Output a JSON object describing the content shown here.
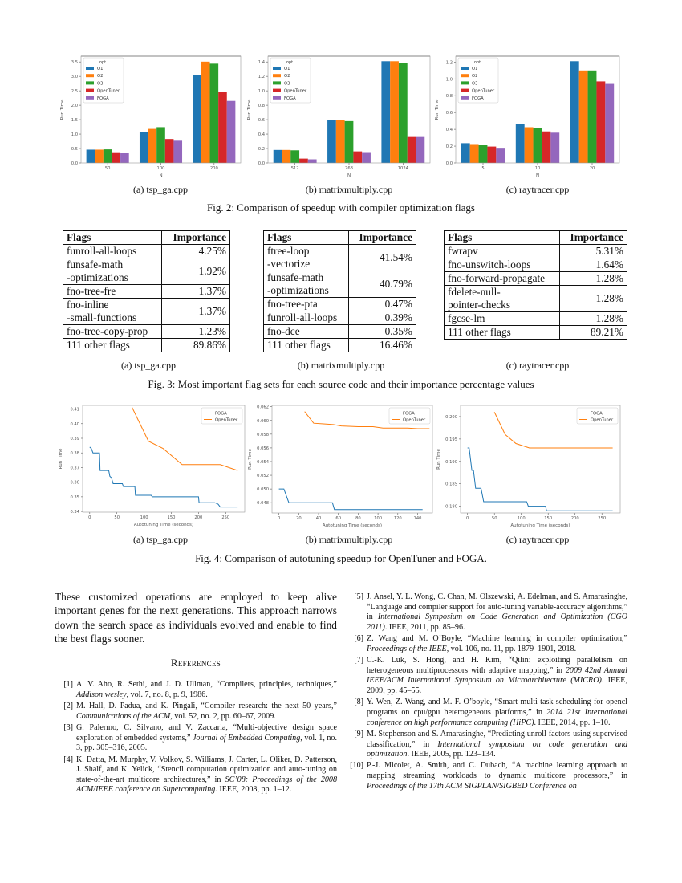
{
  "fig2": {
    "subcaptions": [
      "(a) tsp_ga.cpp",
      "(b) matrixmultiply.cpp",
      "(c) raytracer.cpp"
    ],
    "caption": "Fig. 2: Comparison of speedup with compiler optimization flags"
  },
  "fig3": {
    "subcaptions": [
      "(a) tsp_ga.cpp",
      "(b) matrixmultiply.cpp",
      "(c) raytracer.cpp"
    ],
    "caption": "Fig. 3: Most important flag sets for each source code and their importance percentage values",
    "tables": [
      {
        "headers": [
          "Flags",
          "Importance"
        ],
        "rows": [
          [
            "funroll-all-loops",
            "4.25%"
          ],
          [
            "funsafe-math\n-optimizations",
            "1.92%"
          ],
          [
            "fno-tree-fre",
            "1.37%"
          ],
          [
            "fno-inline\n-small-functions",
            "1.37%"
          ],
          [
            "fno-tree-copy-prop",
            "1.23%"
          ],
          [
            "111 other flags",
            "89.86%"
          ]
        ]
      },
      {
        "headers": [
          "Flags",
          "Importance"
        ],
        "rows": [
          [
            "ftree-loop\n-vectorize",
            "41.54%"
          ],
          [
            "funsafe-math\n-optimizations",
            "40.79%"
          ],
          [
            "fno-tree-pta",
            "0.47%"
          ],
          [
            "funroll-all-loops",
            "0.39%"
          ],
          [
            "fno-dce",
            "0.35%"
          ],
          [
            "111 other flags",
            "16.46%"
          ]
        ]
      },
      {
        "headers": [
          "Flags",
          "Importance"
        ],
        "rows": [
          [
            "fwrapv",
            "5.31%"
          ],
          [
            "fno-unswitch-loops",
            "1.64%"
          ],
          [
            "fno-forward-propagate",
            "1.28%"
          ],
          [
            "fdelete-null-\npointer-checks",
            "1.28%"
          ],
          [
            "fgcse-lm",
            "1.28%"
          ],
          [
            "111 other flags",
            "89.21%"
          ]
        ]
      }
    ]
  },
  "fig4": {
    "subcaptions": [
      "(a) tsp_ga.cpp",
      "(b) matrixmultiply.cpp",
      "(c) raytracer.cpp"
    ],
    "caption": "Fig. 4: Comparison of autotuning speedup for OpenTuner and FOGA."
  },
  "chart_data": [
    {
      "type": "bar",
      "xlabel": "N",
      "ylabel": "Run Time",
      "legend_title": "opt",
      "legend": "top-left",
      "categories": [
        "50",
        "100",
        "200"
      ],
      "ylim": [
        0,
        3.7
      ],
      "yticks": [
        "0.0",
        "0.5",
        "1.0",
        "1.5",
        "2.0",
        "2.5",
        "3.0",
        "3.5"
      ],
      "series": [
        {
          "name": "O1",
          "color": "#1f77b4",
          "values": [
            0.46,
            1.08,
            3.05
          ]
        },
        {
          "name": "O2",
          "color": "#ff7f0e",
          "values": [
            0.46,
            1.18,
            3.51
          ]
        },
        {
          "name": "O3",
          "color": "#2ca02c",
          "values": [
            0.47,
            1.24,
            3.44
          ]
        },
        {
          "name": "OpenTuner",
          "color": "#d62728",
          "values": [
            0.37,
            0.83,
            2.45
          ]
        },
        {
          "name": "FOGA",
          "color": "#9467bd",
          "values": [
            0.34,
            0.77,
            2.15
          ]
        }
      ]
    },
    {
      "type": "bar",
      "xlabel": "N",
      "ylabel": "Run Time",
      "legend_title": "opt",
      "legend": "top-left",
      "categories": [
        "512",
        "768",
        "1024"
      ],
      "ylim": [
        0,
        1.48
      ],
      "yticks": [
        "0.0",
        "0.2",
        "0.4",
        "0.6",
        "0.8",
        "1.0",
        "1.2",
        "1.4"
      ],
      "series": [
        {
          "name": "O1",
          "color": "#1f77b4",
          "values": [
            0.18,
            0.6,
            1.41
          ]
        },
        {
          "name": "O2",
          "color": "#ff7f0e",
          "values": [
            0.18,
            0.6,
            1.41
          ]
        },
        {
          "name": "O3",
          "color": "#2ca02c",
          "values": [
            0.175,
            0.58,
            1.39
          ]
        },
        {
          "name": "OpenTuner",
          "color": "#d62728",
          "values": [
            0.06,
            0.16,
            0.36
          ]
        },
        {
          "name": "FOGA",
          "color": "#9467bd",
          "values": [
            0.05,
            0.15,
            0.36
          ]
        }
      ]
    },
    {
      "type": "bar",
      "xlabel": "N",
      "ylabel": "Run Time",
      "legend_title": "opt",
      "legend": "top-left",
      "categories": [
        "5",
        "10",
        "20"
      ],
      "ylim": [
        0,
        1.27
      ],
      "yticks": [
        "0.0",
        "0.2",
        "0.4",
        "0.6",
        "0.8",
        "1.0",
        "1.2"
      ],
      "series": [
        {
          "name": "O1",
          "color": "#1f77b4",
          "values": [
            0.235,
            0.465,
            1.21
          ]
        },
        {
          "name": "O2",
          "color": "#ff7f0e",
          "values": [
            0.215,
            0.425,
            1.1
          ]
        },
        {
          "name": "O3",
          "color": "#2ca02c",
          "values": [
            0.21,
            0.42,
            1.1
          ]
        },
        {
          "name": "OpenTuner",
          "color": "#d62728",
          "values": [
            0.195,
            0.375,
            0.97
          ]
        },
        {
          "name": "FOGA",
          "color": "#9467bd",
          "values": [
            0.18,
            0.36,
            0.94
          ]
        }
      ]
    },
    {
      "type": "line",
      "xlabel": "Autotuning Time (seconds)",
      "ylabel": "Run Time",
      "legend": "top-right",
      "xlim": [
        -13,
        285
      ],
      "ylim": [
        0.3395,
        0.4125
      ],
      "xticks": [
        "0",
        "50",
        "100",
        "150",
        "200",
        "250"
      ],
      "yticks": [
        "0.34",
        "0.35",
        "0.36",
        "0.37",
        "0.38",
        "0.39",
        "0.40",
        "0.41"
      ],
      "series": [
        {
          "name": "FOGA",
          "color": "#1f77b4",
          "points": [
            [
              0,
              0.384
            ],
            [
              3,
              0.383
            ],
            [
              6,
              0.38
            ],
            [
              18,
              0.38
            ],
            [
              19,
              0.368
            ],
            [
              35,
              0.368
            ],
            [
              37,
              0.364
            ],
            [
              40,
              0.363
            ],
            [
              43,
              0.359
            ],
            [
              60,
              0.359
            ],
            [
              62,
              0.357
            ],
            [
              83,
              0.357
            ],
            [
              84,
              0.351
            ],
            [
              113,
              0.351
            ],
            [
              115,
              0.35
            ],
            [
              200,
              0.35
            ],
            [
              201,
              0.346
            ],
            [
              230,
              0.346
            ],
            [
              236,
              0.345
            ],
            [
              240,
              0.343
            ],
            [
              272,
              0.343
            ]
          ]
        },
        {
          "name": "OpenTuner",
          "color": "#ff7f0e",
          "points": [
            [
              78,
              0.411
            ],
            [
              108,
              0.388
            ],
            [
              135,
              0.383
            ],
            [
              170,
              0.372
            ],
            [
              240,
              0.372
            ],
            [
              272,
              0.368
            ]
          ]
        }
      ]
    },
    {
      "type": "line",
      "xlabel": "Autotuning Time (seconds)",
      "ylabel": "Run Time",
      "legend": "top-right",
      "xlim": [
        -7,
        155
      ],
      "ylim": [
        0.0465,
        0.0622
      ],
      "xticks": [
        "0",
        "20",
        "40",
        "60",
        "80",
        "100",
        "120",
        "140"
      ],
      "yticks": [
        "0.048",
        "0.050",
        "0.052",
        "0.054",
        "0.056",
        "0.058",
        "0.060",
        "0.062"
      ],
      "series": [
        {
          "name": "FOGA",
          "color": "#1f77b4",
          "points": [
            [
              0,
              0.05
            ],
            [
              5,
              0.05
            ],
            [
              10,
              0.048
            ],
            [
              54,
              0.048
            ],
            [
              56,
              0.047
            ],
            [
              145,
              0.047
            ]
          ]
        },
        {
          "name": "OpenTuner",
          "color": "#ff7f0e",
          "points": [
            [
              26,
              0.0613
            ],
            [
              35,
              0.0596
            ],
            [
              45,
              0.0595
            ],
            [
              55,
              0.0594
            ],
            [
              63,
              0.0592
            ],
            [
              80,
              0.0591
            ],
            [
              95,
              0.0591
            ],
            [
              105,
              0.0589
            ],
            [
              130,
              0.0589
            ],
            [
              140,
              0.0588
            ],
            [
              152,
              0.0588
            ]
          ]
        }
      ]
    },
    {
      "type": "line",
      "xlabel": "Autotuning Time (seconds)",
      "ylabel": "Run Time",
      "legend": "top-right",
      "xlim": [
        -13,
        284
      ],
      "ylim": [
        0.1785,
        0.2025
      ],
      "xticks": [
        "0",
        "50",
        "100",
        "150",
        "200",
        "250"
      ],
      "yticks": [
        "0.180",
        "0.185",
        "0.190",
        "0.195",
        "0.200"
      ],
      "series": [
        {
          "name": "FOGA",
          "color": "#1f77b4",
          "points": [
            [
              0,
              0.193
            ],
            [
              3,
              0.193
            ],
            [
              8,
              0.188
            ],
            [
              11,
              0.188
            ],
            [
              15,
              0.184
            ],
            [
              25,
              0.184
            ],
            [
              30,
              0.181
            ],
            [
              110,
              0.181
            ],
            [
              113,
              0.18
            ],
            [
              145,
              0.18
            ],
            [
              147,
              0.179
            ],
            [
              270,
              0.179
            ]
          ]
        },
        {
          "name": "OpenTuner",
          "color": "#ff7f0e",
          "points": [
            [
              50,
              0.201
            ],
            [
              70,
              0.196
            ],
            [
              90,
              0.194
            ],
            [
              115,
              0.193
            ],
            [
              270,
              0.193
            ]
          ]
        }
      ]
    }
  ],
  "body": {
    "paragraph": "These customized operations are employed to keep alive important genes for the next generations. This approach narrows down the search space as individuals evolved and enable to find the best flags sooner.",
    "references_heading": "References"
  },
  "references": [
    {
      "num": "[1]",
      "pre": "A. V. Aho, R. Sethi, and J. D. Ullman, “Compilers, principles, techniques,” ",
      "venue": "Addison wesley",
      "post": ", vol. 7, no. 8, p. 9, 1986."
    },
    {
      "num": "[2]",
      "pre": "M. Hall, D. Padua, and K. Pingali, “Compiler research: the next 50 years,” ",
      "venue": "Communications of the ACM",
      "post": ", vol. 52, no. 2, pp. 60–67, 2009."
    },
    {
      "num": "[3]",
      "pre": "G. Palermo, C. Silvano, and V. Zaccaria, “Multi-objective design space exploration of embedded systems,” ",
      "venue": "Journal of Embedded Computing",
      "post": ", vol. 1, no. 3, pp. 305–316, 2005."
    },
    {
      "num": "[4]",
      "pre": "K. Datta, M. Murphy, V. Volkov, S. Williams, J. Carter, L. Oliker, D. Patterson, J. Shalf, and K. Yelick, “Stencil computation optimization and auto-tuning on state-of-the-art multicore architectures,” in ",
      "venue": "SC’08: Proceedings of the 2008 ACM/IEEE conference on Supercomputing",
      "post": ". IEEE, 2008, pp. 1–12."
    },
    {
      "num": "[5]",
      "pre": "J. Ansel, Y. L. Wong, C. Chan, M. Olszewski, A. Edelman, and S. Amarasinghe, “Language and compiler support for auto-tuning variable-accuracy algorithms,” in ",
      "venue": "International Symposium on Code Generation and Optimization (CGO 2011)",
      "post": ". IEEE, 2011, pp. 85–96."
    },
    {
      "num": "[6]",
      "pre": "Z. Wang and M. O’Boyle, “Machine learning in compiler optimization,” ",
      "venue": "Proceedings of the IEEE",
      "post": ", vol. 106, no. 11, pp. 1879–1901, 2018."
    },
    {
      "num": "[7]",
      "pre": "C.-K. Luk, S. Hong, and H. Kim, “Qilin: exploiting parallelism on heterogeneous multiprocessors with adaptive mapping,” in ",
      "venue": "2009 42nd Annual IEEE/ACM International Symposium on Microarchitecture (MICRO)",
      "post": ". IEEE, 2009, pp. 45–55."
    },
    {
      "num": "[8]",
      "pre": "Y. Wen, Z. Wang, and M. F. O’boyle, “Smart multi-task scheduling for opencl programs on cpu/gpu heterogeneous platforms,” in ",
      "venue": "2014 21st International conference on high performance computing (HiPC)",
      "post": ". IEEE, 2014, pp. 1–10."
    },
    {
      "num": "[9]",
      "pre": "M. Stephenson and S. Amarasinghe, “Predicting unroll factors using supervised classification,” in ",
      "venue": "International symposium on code generation and optimization",
      "post": ". IEEE, 2005, pp. 123–134."
    },
    {
      "num": "[10]",
      "pre": "P.-J. Micolet, A. Smith, and C. Dubach, “A machine learning approach to mapping streaming workloads to dynamic multicore processors,” in ",
      "venue": "Proceedings of the 17th ACM SIGPLAN/SIGBED Conference on",
      "post": ""
    }
  ]
}
